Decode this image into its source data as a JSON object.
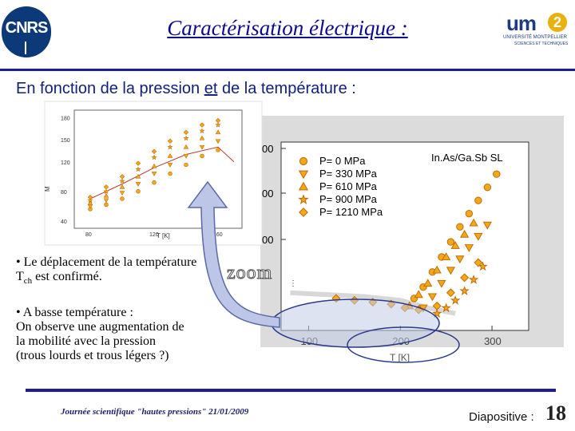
{
  "header": {
    "title": "Caractérisation électrique :",
    "left_logo": {
      "text": "CNRS",
      "icon": "cnrs-logo"
    },
    "right_logo": {
      "text": "um",
      "badge": "2",
      "line1": "UNIVERSITÉ MONTPELLIER",
      "line2": "SCIENCES ET TECHNIQUES",
      "icon": "um2-logo"
    }
  },
  "subtitle": {
    "part1": "En fonction de la pression ",
    "part2": "et",
    "part3": " de la température :"
  },
  "notes": {
    "note1_prefix": "• Le déplacement de la température T",
    "note1_sub": "ch",
    "note1_suffix": " est confirmé.",
    "note2_line1": "• A basse température :",
    "note2_line2": "On observe une augmentation de",
    "note2_line3": "la mobilité avec la pression",
    "note2_line4": "(trous lourds et trous légers ?)"
  },
  "zoom_label": "zoom",
  "footer": {
    "event": "Journée scientifique \"hautes pressions\" 21/01/2009",
    "slide_label": "Diapositive :",
    "slide_number": "18"
  },
  "colors": {
    "title_blue": "#0a0a8c",
    "rule_blue": "#1d1d9c",
    "marker_orange": "#f2a81b",
    "marker_outline": "#c46a00",
    "plot_background": "#ffffff",
    "curve_grey": "#d8d8d8",
    "arrow_fill": "#bdc6e6",
    "ellipse_fill": "#c2cce8",
    "ellipse_stroke": "#2a3a8a"
  },
  "chart_data": [
    {
      "type": "scatter",
      "name_in_figure": "small inset",
      "ylabel": "M",
      "xlabel": "T [K]",
      "x_ticks": [
        "80",
        "120",
        "160"
      ],
      "y_ticks": [
        "40",
        "80",
        "120",
        "150",
        "180"
      ],
      "series": [
        {
          "marker": "circle",
          "points": [
            [
              80,
              56
            ],
            [
              90,
              62
            ],
            [
              100,
              70
            ],
            [
              110,
              80
            ],
            [
              120,
              92
            ],
            [
              130,
              104
            ],
            [
              140,
              116
            ],
            [
              150,
              128
            ],
            [
              160,
              136
            ]
          ]
        },
        {
          "marker": "triangle-down",
          "points": [
            [
              80,
              60
            ],
            [
              90,
              68
            ],
            [
              100,
              78
            ],
            [
              110,
              90
            ],
            [
              120,
              104
            ],
            [
              130,
              116
            ],
            [
              140,
              128
            ],
            [
              150,
              140
            ],
            [
              160,
              148
            ]
          ]
        },
        {
          "marker": "triangle-up",
          "points": [
            [
              80,
              64
            ],
            [
              90,
              74
            ],
            [
              100,
              86
            ],
            [
              110,
              100
            ],
            [
              120,
              114
            ],
            [
              130,
              128
            ],
            [
              140,
              140
            ],
            [
              150,
              152
            ],
            [
              160,
              160
            ]
          ]
        },
        {
          "marker": "star",
          "points": [
            [
              80,
              68
            ],
            [
              90,
              80
            ],
            [
              100,
              94
            ],
            [
              110,
              110
            ],
            [
              120,
              126
            ],
            [
              130,
              140
            ],
            [
              140,
              152
            ],
            [
              150,
              162
            ],
            [
              160,
              170
            ]
          ]
        },
        {
          "marker": "diamond",
          "points": [
            [
              80,
              72
            ],
            [
              90,
              86
            ],
            [
              100,
              100
            ],
            [
              110,
              118
            ],
            [
              120,
              134
            ],
            [
              130,
              148
            ],
            [
              140,
              160
            ],
            [
              150,
              170
            ],
            [
              160,
              176
            ]
          ]
        }
      ],
      "curve": [
        [
          80,
          70
        ],
        [
          100,
          90
        ],
        [
          120,
          112
        ],
        [
          140,
          130
        ],
        [
          160,
          140
        ],
        [
          170,
          120
        ]
      ]
    },
    {
      "type": "scatter",
      "name_in_figure": "zoomed main plot",
      "annotation": "In.As/Ga.Sb SL",
      "xlabel": "T [K]",
      "x_ticks": [
        "100",
        "200",
        "300"
      ],
      "y_ticks": [
        "00",
        "00",
        "00"
      ],
      "xlim": [
        70,
        340
      ],
      "ylim": [
        0,
        1
      ],
      "legend": [
        {
          "marker": "circle",
          "label": "P= 0 MPa"
        },
        {
          "marker": "triangle-down",
          "label": "P= 330 MPa"
        },
        {
          "marker": "triangle-up",
          "label": "P= 610 MPa"
        },
        {
          "marker": "star",
          "label": "P= 900 MPa"
        },
        {
          "marker": "diamond",
          "label": "P= 1210 MPa"
        }
      ],
      "legend_position": "top-left",
      "series": [
        {
          "marker": "circle",
          "points": [
            [
              215,
              0.17
            ],
            [
              225,
              0.23
            ],
            [
              235,
              0.31
            ],
            [
              245,
              0.39
            ],
            [
              255,
              0.47
            ],
            [
              265,
              0.55
            ],
            [
              275,
              0.62
            ],
            [
              285,
              0.69
            ],
            [
              295,
              0.76
            ],
            [
              305,
              0.83
            ]
          ]
        },
        {
          "marker": "triangle-down",
          "points": [
            [
              225,
              0.12
            ],
            [
              235,
              0.18
            ],
            [
              245,
              0.25
            ],
            [
              255,
              0.32
            ],
            [
              265,
              0.38
            ],
            [
              275,
              0.44
            ],
            [
              285,
              0.5
            ],
            [
              295,
              0.56
            ]
          ]
        },
        {
          "marker": "triangle-up",
          "points": [
            [
              210,
              0.13
            ],
            [
              220,
              0.19
            ],
            [
              230,
              0.25
            ],
            [
              240,
              0.32
            ],
            [
              250,
              0.39
            ],
            [
              260,
              0.45
            ],
            [
              270,
              0.51
            ],
            [
              280,
              0.57
            ]
          ]
        },
        {
          "marker": "star",
          "points": [
            [
              240,
              0.09
            ],
            [
              250,
              0.12
            ],
            [
              260,
              0.16
            ],
            [
              270,
              0.21
            ],
            [
              280,
              0.27
            ],
            [
              290,
              0.34
            ]
          ]
        },
        {
          "marker": "diamond",
          "points": [
            [
              130,
              0.17
            ],
            [
              150,
              0.16
            ],
            [
              170,
              0.15
            ],
            [
              190,
              0.14
            ],
            [
              205,
              0.12
            ],
            [
              220,
              0.11
            ],
            [
              240,
              0.13
            ],
            [
              255,
              0.2
            ],
            [
              270,
              0.28
            ],
            [
              285,
              0.36
            ]
          ]
        }
      ],
      "background_curve": [
        [
          80,
          0.2
        ],
        [
          120,
          0.19
        ],
        [
          160,
          0.18
        ],
        [
          200,
          0.16
        ],
        [
          230,
          0.12
        ],
        [
          260,
          0.09
        ]
      ]
    }
  ]
}
